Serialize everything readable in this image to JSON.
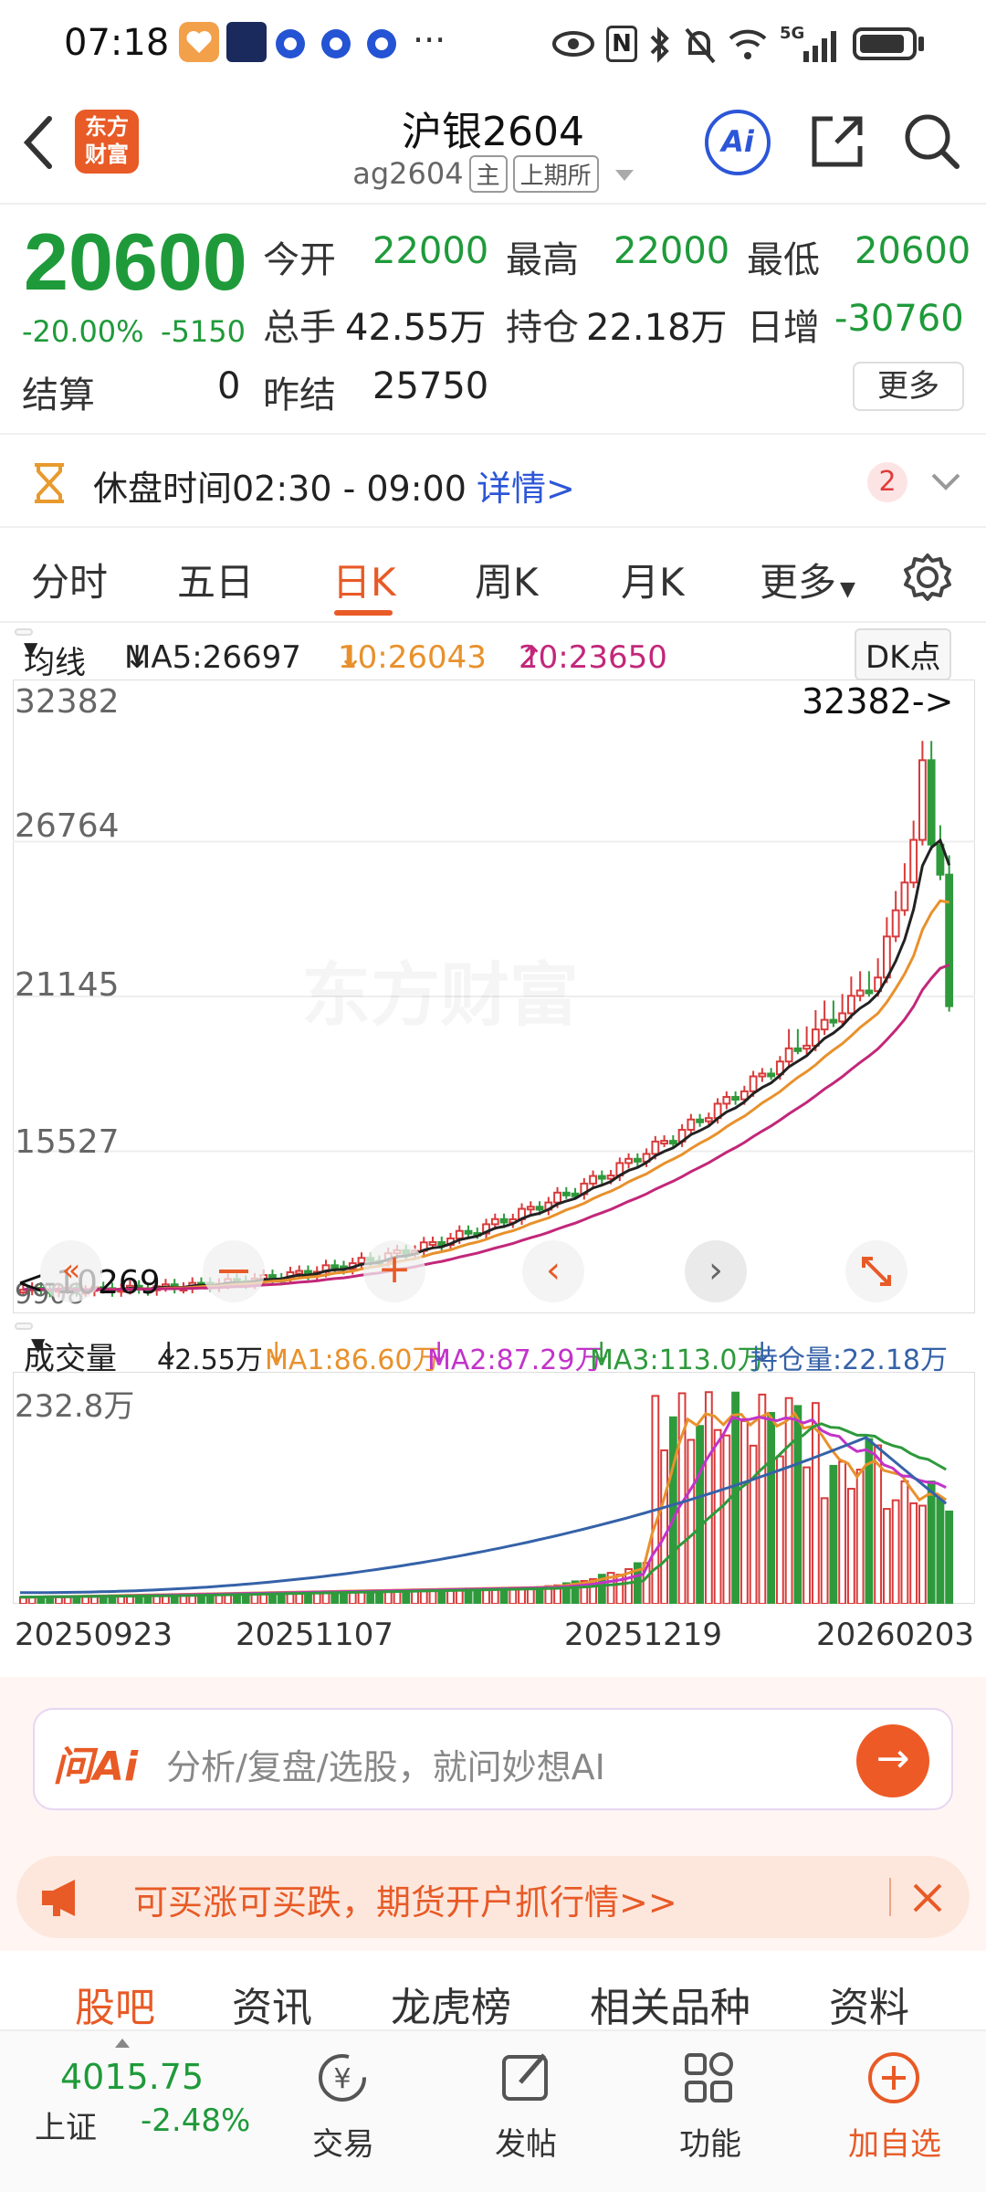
{
  "status_bar": {
    "time": "07:18",
    "dots": "···",
    "network": "5G"
  },
  "header": {
    "title": "沪银2604",
    "code": "ag2604",
    "tag_main": "主",
    "tag_exchange": "上期所",
    "logo_text": "东方财富"
  },
  "quote": {
    "price": "20600",
    "pct_change": "-20.00%",
    "change": "-5150",
    "open_label": "今开",
    "open": "22000",
    "high_label": "最高",
    "high": "22000",
    "low_label": "最低",
    "low": "20600",
    "volume_label": "总手",
    "volume": "42.55万",
    "oi_label": "持仓",
    "oi": "22.18万",
    "daily_inc_label": "日增",
    "daily_inc": "-30760",
    "settle_label": "结算",
    "settle": "0",
    "prev_settle_label": "昨结",
    "prev_settle": "25750",
    "more": "更多"
  },
  "notice": {
    "text": "休盘时间02:30 - 09:00",
    "link": "详情>",
    "badge": "2"
  },
  "tabs": {
    "items": [
      "分时",
      "五日",
      "日K",
      "周K",
      "月K",
      "更多"
    ],
    "active": "日K"
  },
  "ma_row": {
    "selector": "均线",
    "ma5": "MA5:26697",
    "ma10": "10:26043",
    "ma20": "20:23650",
    "dk": "DK点",
    "colors": {
      "ma5": "#222222",
      "ma10": "#e8912c",
      "ma20": "#c2277a"
    }
  },
  "chart_labels": {
    "y1": "32382",
    "y2": "26764",
    "y3": "21145",
    "y4": "15527",
    "y5": "9908",
    "max_marker": "32382->",
    "min_marker": "<-10269",
    "watermark": "东方财富",
    "vol_max": "232.8万",
    "dates": [
      "20250923",
      "20251107",
      "20251219",
      "20260203"
    ]
  },
  "vol_row": {
    "selector": "成交量",
    "vol": "42.55万",
    "ma1": "MA1:86.60万",
    "ma2": "MA2:87.29万",
    "ma3": "MA3:113.0万",
    "oi": "持仓量:22.18万"
  },
  "ai": {
    "placeholder": "分析/复盘/选股，就问妙想AI",
    "logo": "问Ai"
  },
  "ad": {
    "text": "可买涨可买跌，期货开户抓行情>>"
  },
  "bottom_tabs": [
    "股吧",
    "资讯",
    "龙虎榜",
    "相关品种",
    "资料"
  ],
  "bottom_bar": {
    "index_value": "4015.75",
    "index_name": "上证",
    "index_change": "-2.48%",
    "trade": "交易",
    "post": "发帖",
    "func": "功能",
    "add": "加自选"
  },
  "chart_data": {
    "type": "candlestick",
    "y_ticks": [
      32382,
      26764,
      21145,
      15527,
      9908
    ],
    "ylim": [
      9908,
      32382
    ],
    "x_tick_labels": [
      "20250923",
      "20251107",
      "20251219",
      "20260203"
    ],
    "max_marker": 32382,
    "min_marker": 10269,
    "series": [
      {
        "name": "MA5",
        "value": 26697
      },
      {
        "name": "10",
        "value": 26043
      },
      {
        "name": "20",
        "value": 23650
      }
    ],
    "volume": {
      "max": "232.8万",
      "latest": "42.55万",
      "MA1": "86.60万",
      "MA2": "87.29万",
      "MA3": "113.0万",
      "open_interest": "22.18万"
    }
  }
}
